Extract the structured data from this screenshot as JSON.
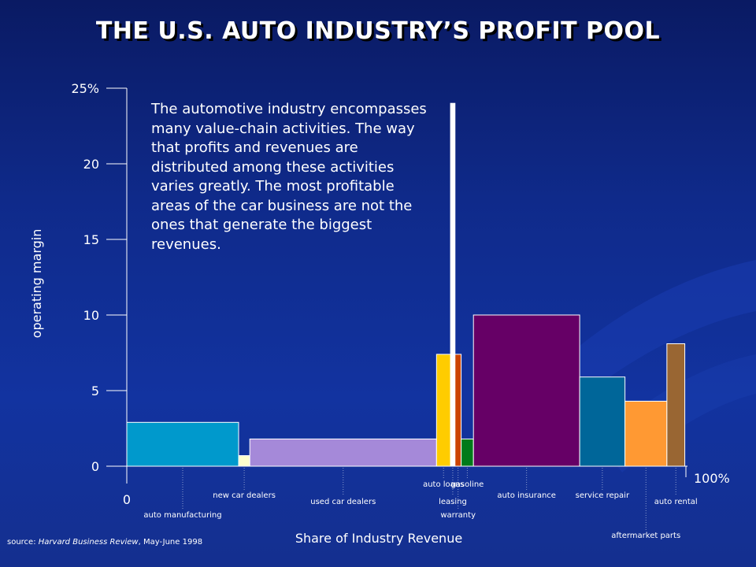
{
  "title": "THE U.S. AUTO INDUSTRY’S PROFIT POOL",
  "description": "The automotive industry encompasses many value-chain activities.  The way that profits and revenues are distributed among these activities varies greatly.  The most profitable areas of the car business are not the ones that generate the biggest revenues.",
  "source": {
    "prefix": "source: ",
    "publication": "Harvard Business Review",
    "date": ", May-June 1998"
  },
  "colors": {
    "background": "#0f2a8a",
    "axis": "#ffffff"
  },
  "chart_data": {
    "type": "bar",
    "variant": "variable-width (marimekko)",
    "xlabel": "Share of Industry Revenue",
    "ylabel": "operating margin",
    "xlim": [
      0,
      100
    ],
    "ylim": [
      0,
      25
    ],
    "x_tick_labels": [
      "0",
      "100%"
    ],
    "y_ticks": [
      {
        "value": 0,
        "label": "0"
      },
      {
        "value": 5,
        "label": "5"
      },
      {
        "value": 10,
        "label": "10"
      },
      {
        "value": 15,
        "label": "15"
      },
      {
        "value": 20,
        "label": "20"
      },
      {
        "value": 25,
        "label": "25%"
      }
    ],
    "grid": false,
    "segments": [
      {
        "name": "auto manufacturing",
        "share": 20.0,
        "margin": 2.9,
        "color": "#0099cc",
        "label_row": 3
      },
      {
        "name": "new car dealers",
        "share": 2.0,
        "margin": 0.7,
        "color": "#ffffcc",
        "label_row": 1
      },
      {
        "name": "used car dealers",
        "share": 33.4,
        "margin": 1.8,
        "color": "#a589d9",
        "label_row": 2
      },
      {
        "name": "auto loans",
        "share": 2.5,
        "margin": 7.4,
        "color": "#ffcc00",
        "label_row": 0
      },
      {
        "name": "leasing",
        "share": 0.8,
        "margin": 24.0,
        "color": "#ffffff",
        "label_row": 2
      },
      {
        "name": "warranty",
        "share": 1.1,
        "margin": 7.4,
        "color": "#cc4400",
        "label_row": 3
      },
      {
        "name": "gasoline",
        "share": 2.2,
        "margin": 1.8,
        "color": "#007a1a",
        "label_row": 0
      },
      {
        "name": "auto insurance",
        "share": 19.0,
        "margin": 10.0,
        "color": "#660066",
        "label_row": 1
      },
      {
        "name": "service repair",
        "share": 8.1,
        "margin": 5.9,
        "color": "#006699",
        "label_row": 1
      },
      {
        "name": "aftermarket parts",
        "share": 7.5,
        "margin": 4.3,
        "color": "#ff9933",
        "label_row": 4
      },
      {
        "name": "auto rental",
        "share": 3.2,
        "margin": 8.1,
        "color": "#996633",
        "label_row": 2
      }
    ]
  }
}
